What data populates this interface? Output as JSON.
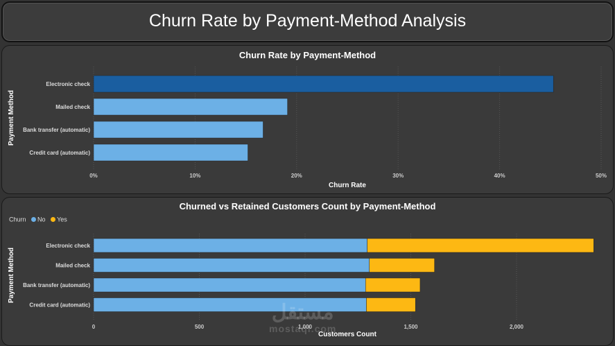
{
  "page": {
    "title": "Churn Rate by Payment-Method Analysis",
    "watermark_ar": "مستقل",
    "watermark_lat": "mostaql.com"
  },
  "chart_data": [
    {
      "type": "bar",
      "orientation": "horizontal",
      "title": "Churn Rate by Payment-Method",
      "xlabel": "Churn Rate",
      "ylabel": "Payment Method",
      "categories": [
        "Electronic check",
        "Mailed check",
        "Bank transfer (automatic)",
        "Credit card (automatic)"
      ],
      "values": [
        45.3,
        19.1,
        16.7,
        15.2
      ],
      "xlim": [
        0,
        50
      ],
      "ticks": [
        "0%",
        "10%",
        "20%",
        "30%",
        "40%",
        "50%"
      ],
      "colors": {
        "highlight": "#1a5ea0",
        "bar": "#6cb0e6"
      },
      "grid": true
    },
    {
      "type": "bar",
      "orientation": "horizontal",
      "stacked": true,
      "title": "Churned vs Retained Customers Count by Payment-Method",
      "xlabel": "Customers Count",
      "ylabel": "Payment Method",
      "legend_title": "Churn",
      "legend_position": "top-left",
      "categories": [
        "Electronic check",
        "Mailed check",
        "Bank transfer (automatic)",
        "Credit card (automatic)"
      ],
      "series": [
        {
          "name": "No",
          "color": "#6cb0e6",
          "values": [
            1294,
            1304,
            1286,
            1290
          ]
        },
        {
          "name": "Yes",
          "color": "#fdb813",
          "values": [
            1071,
            308,
            258,
            232
          ]
        }
      ],
      "xlim": [
        0,
        2400
      ],
      "ticks": [
        "0",
        "500",
        "1,000",
        "1,500",
        "2,000"
      ],
      "grid": true
    }
  ]
}
